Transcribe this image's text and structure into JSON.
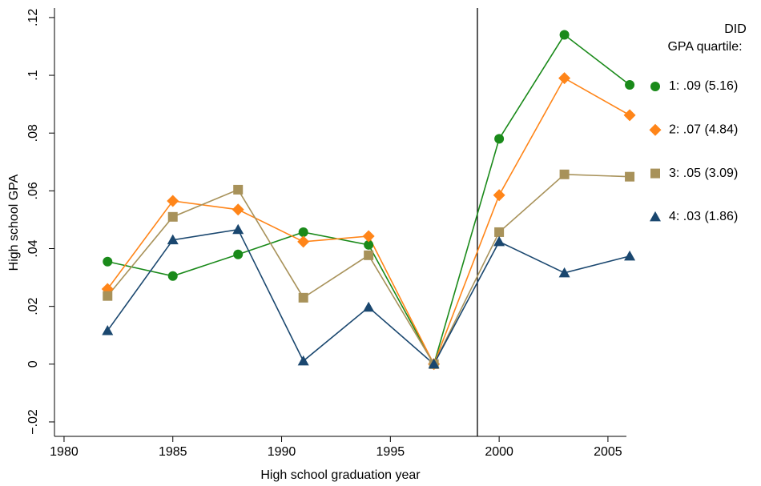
{
  "chart_data": {
    "type": "line",
    "x_label": "High school graduation year",
    "y_label": "High school GPA",
    "x": [
      1982,
      1985,
      1988,
      1991,
      1994,
      1997,
      2000,
      2003,
      2006
    ],
    "series": [
      {
        "name": "1: .09 (5.16)",
        "color": "#1a8a1a",
        "marker": "circle",
        "values": [
          0.0355,
          0.0305,
          0.038,
          0.0457,
          0.0413,
          0,
          0.078,
          0.114,
          0.0967
        ]
      },
      {
        "name": "2: .07 (4.84)",
        "color": "#ff8519",
        "marker": "diamond",
        "values": [
          0.026,
          0.0565,
          0.0535,
          0.0424,
          0.0443,
          0,
          0.0585,
          0.099,
          0.0862
        ]
      },
      {
        "name": "3: .05 (3.09)",
        "color": "#a8925a",
        "marker": "square",
        "values": [
          0.0236,
          0.051,
          0.0604,
          0.023,
          0.0377,
          0,
          0.0457,
          0.0657,
          0.0649
        ]
      },
      {
        "name": "4: .03 (1.86)",
        "color": "#1a476f",
        "marker": "triangle",
        "values": [
          0.0116,
          0.043,
          0.0466,
          0.0011,
          0.0197,
          0,
          0.0424,
          0.0316,
          0.0374
        ]
      }
    ],
    "xlim": [
      1979.56,
      2005.85
    ],
    "ylim": [
      -0.025,
      0.1233
    ],
    "xticks": [
      1980,
      1985,
      1990,
      1995,
      2000,
      2005
    ],
    "yticks": [
      {
        "value": -0.02,
        "label": "−.02"
      },
      0,
      {
        "value": 0.02,
        "label": ".02"
      },
      {
        "value": 0.04,
        "label": ".04"
      },
      {
        "value": 0.06,
        "label": ".06"
      },
      {
        "value": 0.08,
        "label": ".08"
      },
      {
        "value": 0.1,
        "label": ".1"
      },
      {
        "value": 0.12,
        "label": ".12"
      }
    ],
    "vline": 1999,
    "legend_title": "DID",
    "legend_subtitle": "GPA quartile:",
    "legend_position": "right"
  }
}
